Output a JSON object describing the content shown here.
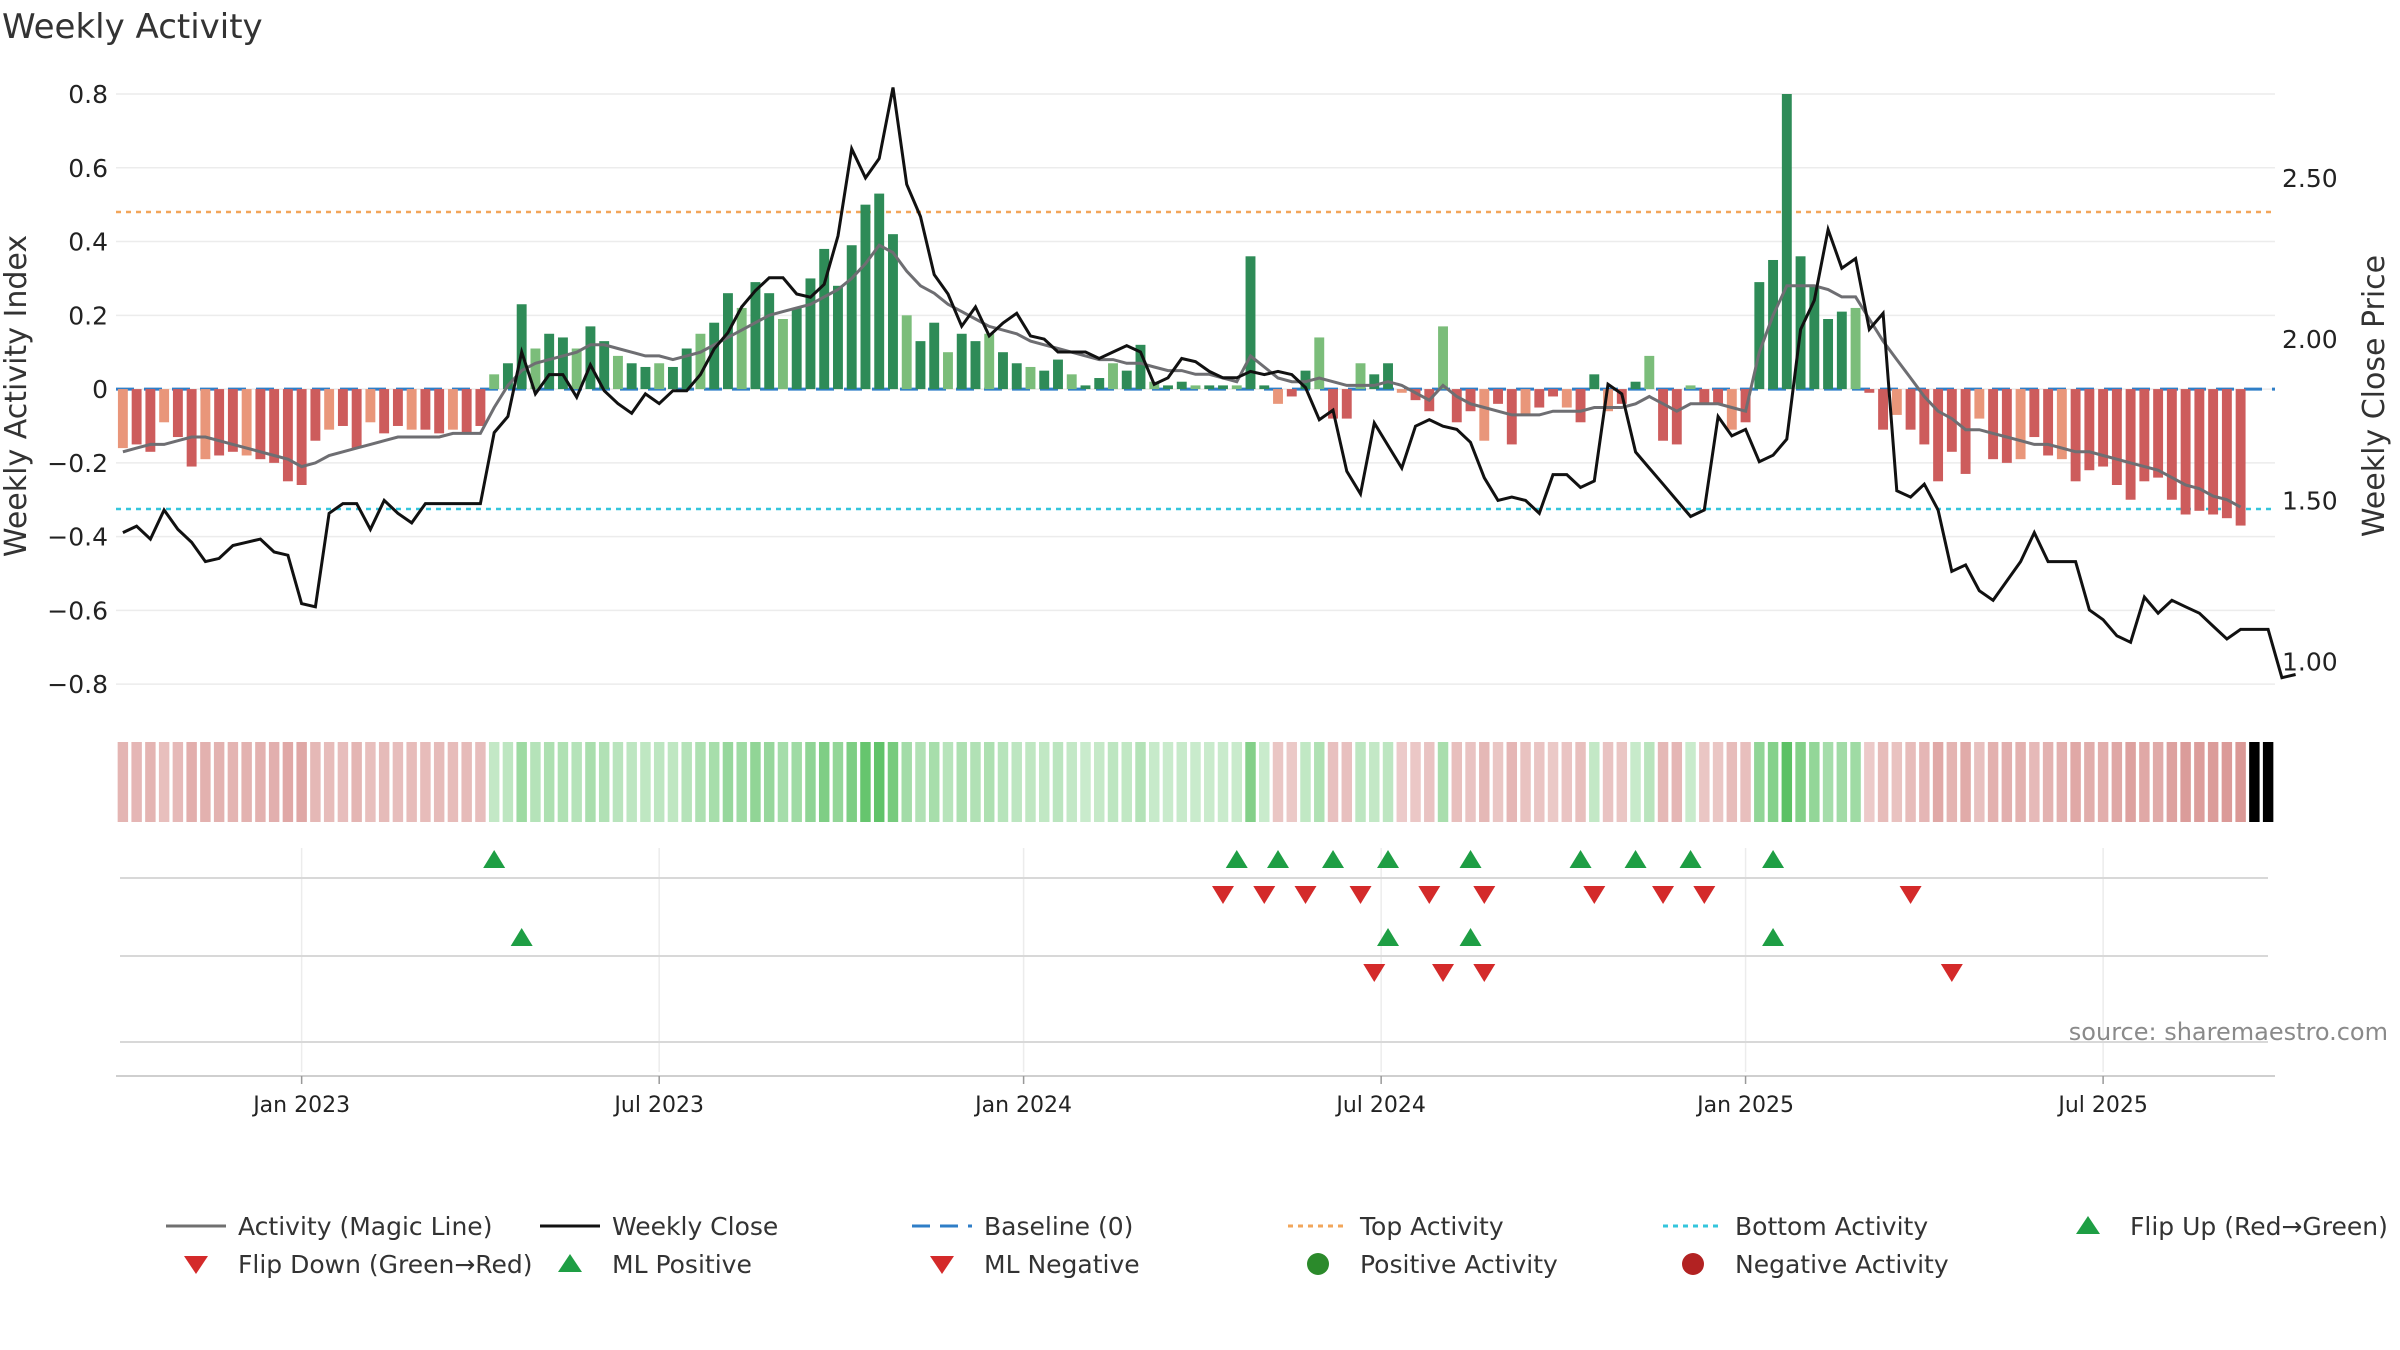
{
  "chart_data": {
    "type": "bar",
    "title": "Weekly Activity",
    "ylabel": "Weekly Activity Index",
    "y2label": "Weekly Close Price",
    "ylim": [
      -0.87,
      0.8
    ],
    "y2lim": [
      0.85,
      2.76
    ],
    "yticks": [
      {
        "v": 0.8,
        "label": "0.8"
      },
      {
        "v": 0.6,
        "label": "0.6"
      },
      {
        "v": 0.4,
        "label": "0.4"
      },
      {
        "v": 0.2,
        "label": "0.2"
      },
      {
        "v": 0,
        "label": "0"
      },
      {
        "v": -0.2,
        "label": "−0.2"
      },
      {
        "v": -0.4,
        "label": "−0.4"
      },
      {
        "v": -0.6,
        "label": "−0.6"
      },
      {
        "v": -0.8,
        "label": "−0.8"
      }
    ],
    "y2ticks": [
      {
        "v": 2.5,
        "label": "2.50"
      },
      {
        "v": 2.0,
        "label": "2.00"
      },
      {
        "v": 1.5,
        "label": "1.50"
      },
      {
        "v": 1.0,
        "label": "1.00"
      }
    ],
    "x_start": "2022-10-03",
    "x_weeks": 157,
    "xticks": [
      {
        "w": 13,
        "label": "Jan 2023"
      },
      {
        "w": 39,
        "label": "Jul 2023"
      },
      {
        "w": 65.5,
        "label": "Jan 2024"
      },
      {
        "w": 91.5,
        "label": "Jul 2024"
      },
      {
        "w": 118,
        "label": "Jan 2025"
      },
      {
        "w": 144,
        "label": "Jul 2025"
      }
    ],
    "top_activity": 0.48,
    "bottom_activity": -0.325,
    "baseline": 0,
    "activity": [
      -0.16,
      -0.15,
      -0.17,
      -0.09,
      -0.13,
      -0.21,
      -0.19,
      -0.18,
      -0.17,
      -0.18,
      -0.19,
      -0.2,
      -0.25,
      -0.26,
      -0.14,
      -0.11,
      -0.1,
      -0.16,
      -0.09,
      -0.12,
      -0.1,
      -0.11,
      -0.11,
      -0.12,
      -0.11,
      -0.12,
      -0.1,
      0.04,
      0.07,
      0.23,
      0.11,
      0.15,
      0.14,
      0.11,
      0.17,
      0.13,
      0.09,
      0.07,
      0.06,
      0.07,
      0.06,
      0.11,
      0.15,
      0.18,
      0.26,
      0.22,
      0.29,
      0.26,
      0.19,
      0.22,
      0.3,
      0.38,
      0.28,
      0.39,
      0.5,
      0.53,
      0.42,
      0.2,
      0.13,
      0.18,
      0.1,
      0.15,
      0.13,
      0.15,
      0.1,
      0.07,
      0.06,
      0.05,
      0.08,
      0.04,
      0.01,
      0.03,
      0.07,
      0.05,
      0.12,
      0.02,
      0.01,
      0.02,
      0.01,
      0.01,
      0.01,
      0.01,
      0.36,
      0.01,
      -0.04,
      -0.02,
      0.05,
      0.14,
      -0.08,
      -0.08,
      0.07,
      0.04,
      0.07,
      -0.01,
      -0.03,
      -0.06,
      0.17,
      -0.09,
      -0.06,
      -0.14,
      -0.04,
      -0.15,
      -0.07,
      -0.05,
      -0.02,
      -0.05,
      -0.09,
      0.04,
      -0.06,
      -0.04,
      0.02,
      0.09,
      -0.14,
      -0.15,
      0.01,
      -0.04,
      -0.04,
      -0.11,
      -0.09,
      0.29,
      0.35,
      0.8,
      0.36,
      0.28,
      0.19,
      0.21,
      0.22,
      -0.01,
      -0.11,
      -0.07,
      -0.11,
      -0.15,
      -0.25,
      -0.17,
      -0.23,
      -0.08,
      -0.19,
      -0.2,
      -0.19,
      -0.13,
      -0.18,
      -0.19,
      -0.25,
      -0.22,
      -0.21,
      -0.26,
      -0.3,
      -0.25,
      -0.24,
      -0.3,
      -0.34,
      -0.33,
      -0.34,
      -0.35,
      -0.37
    ],
    "magic_line": [
      -0.17,
      -0.16,
      -0.15,
      -0.15,
      -0.14,
      -0.13,
      -0.13,
      -0.14,
      -0.15,
      -0.16,
      -0.17,
      -0.18,
      -0.19,
      -0.21,
      -0.2,
      -0.18,
      -0.17,
      -0.16,
      -0.15,
      -0.14,
      -0.13,
      -0.13,
      -0.13,
      -0.13,
      -0.12,
      -0.12,
      -0.12,
      -0.05,
      0.01,
      0.05,
      0.07,
      0.08,
      0.09,
      0.1,
      0.12,
      0.12,
      0.11,
      0.1,
      0.09,
      0.09,
      0.08,
      0.09,
      0.1,
      0.12,
      0.14,
      0.16,
      0.18,
      0.2,
      0.21,
      0.22,
      0.23,
      0.25,
      0.27,
      0.3,
      0.34,
      0.39,
      0.37,
      0.32,
      0.28,
      0.26,
      0.23,
      0.21,
      0.19,
      0.17,
      0.16,
      0.15,
      0.13,
      0.12,
      0.11,
      0.1,
      0.09,
      0.08,
      0.08,
      0.07,
      0.07,
      0.06,
      0.05,
      0.05,
      0.04,
      0.04,
      0.03,
      0.02,
      0.09,
      0.06,
      0.03,
      0.02,
      0.02,
      0.03,
      0.02,
      0.01,
      0.01,
      0.01,
      0.02,
      0.01,
      -0.01,
      -0.03,
      0.01,
      -0.02,
      -0.04,
      -0.05,
      -0.06,
      -0.07,
      -0.07,
      -0.07,
      -0.06,
      -0.06,
      -0.06,
      -0.05,
      -0.05,
      -0.05,
      -0.04,
      -0.02,
      -0.04,
      -0.06,
      -0.04,
      -0.04,
      -0.04,
      -0.05,
      -0.06,
      0.1,
      0.2,
      0.28,
      0.28,
      0.28,
      0.27,
      0.25,
      0.25,
      0.19,
      0.13,
      0.08,
      0.03,
      -0.02,
      -0.06,
      -0.08,
      -0.11,
      -0.11,
      -0.12,
      -0.13,
      -0.14,
      -0.15,
      -0.15,
      -0.16,
      -0.17,
      -0.17,
      -0.18,
      -0.19,
      -0.2,
      -0.21,
      -0.22,
      -0.24,
      -0.26,
      -0.27,
      -0.29,
      -0.3,
      -0.32
    ],
    "weekly_close": [
      1.4,
      1.42,
      1.38,
      1.47,
      1.41,
      1.37,
      1.31,
      1.32,
      1.36,
      1.37,
      1.38,
      1.34,
      1.33,
      1.18,
      1.17,
      1.46,
      1.49,
      1.49,
      1.41,
      1.5,
      1.46,
      1.43,
      1.49,
      1.49,
      1.49,
      1.49,
      1.49,
      1.71,
      1.76,
      1.96,
      1.83,
      1.89,
      1.89,
      1.82,
      1.92,
      1.84,
      1.8,
      1.77,
      1.83,
      1.8,
      1.84,
      1.84,
      1.89,
      1.97,
      2.02,
      2.1,
      2.15,
      2.19,
      2.19,
      2.14,
      2.13,
      2.17,
      2.32,
      2.59,
      2.5,
      2.56,
      2.78,
      2.48,
      2.38,
      2.2,
      2.14,
      2.04,
      2.1,
      2.01,
      2.05,
      2.08,
      2.01,
      2.0,
      1.96,
      1.96,
      1.96,
      1.94,
      1.96,
      1.98,
      1.96,
      1.86,
      1.88,
      1.94,
      1.93,
      1.9,
      1.88,
      1.88,
      1.9,
      1.89,
      1.9,
      1.89,
      1.85,
      1.75,
      1.78,
      1.59,
      1.52,
      1.74,
      1.67,
      1.6,
      1.73,
      1.75,
      1.73,
      1.72,
      1.68,
      1.57,
      1.5,
      1.51,
      1.5,
      1.46,
      1.58,
      1.58,
      1.54,
      1.56,
      1.86,
      1.83,
      1.65,
      1.6,
      1.55,
      1.5,
      1.45,
      1.47,
      1.76,
      1.7,
      1.72,
      1.62,
      1.64,
      1.69,
      2.03,
      2.12,
      2.34,
      2.22,
      2.25,
      2.03,
      2.08,
      1.53,
      1.51,
      1.55,
      1.47,
      1.28,
      1.3,
      1.22,
      1.19,
      1.25,
      1.31,
      1.4,
      1.31,
      1.31,
      1.31,
      1.16,
      1.13,
      1.08,
      1.06,
      1.2,
      1.15,
      1.19,
      1.17,
      1.15,
      1.11,
      1.07,
      1.1,
      1.1,
      1.1,
      0.95,
      0.96
    ],
    "marker_rows": [
      {
        "row": 1,
        "up": [
          27,
          81,
          84,
          88,
          92,
          98,
          106,
          110,
          114,
          120
        ],
        "down": [
          80,
          83,
          86,
          90,
          95,
          99,
          107,
          112,
          115,
          130
        ]
      },
      {
        "row": 2,
        "up": [
          29,
          92,
          98,
          120
        ],
        "down": [
          91,
          96,
          99,
          133
        ]
      },
      {
        "row": 3,
        "up": [],
        "down": []
      }
    ],
    "legend": [
      {
        "label": "Activity (Magic Line)",
        "kind": "line",
        "color": "#707070"
      },
      {
        "label": "Weekly Close",
        "kind": "line",
        "color": "#111111"
      },
      {
        "label": "Baseline (0)",
        "kind": "dash",
        "color": "#2f7ec7"
      },
      {
        "label": "Top Activity",
        "kind": "dot",
        "color": "#f2a65a"
      },
      {
        "label": "Bottom Activity",
        "kind": "dot",
        "color": "#34c6dc"
      },
      {
        "label": "Flip Up (Red→Green)",
        "kind": "up",
        "color": "#1e9e44"
      },
      {
        "label": "Flip Down (Green→Red)",
        "kind": "down",
        "color": "#d42a2a"
      },
      {
        "label": "ML Positive",
        "kind": "up",
        "color": "#1e9e44"
      },
      {
        "label": "ML Negative",
        "kind": "down",
        "color": "#d42a2a"
      },
      {
        "label": "Positive Activity",
        "kind": "circle",
        "color": "#2b8a2b"
      },
      {
        "label": "Negative Activity",
        "kind": "circle",
        "color": "#b22222"
      }
    ],
    "source": "source: sharemaestro.com"
  }
}
